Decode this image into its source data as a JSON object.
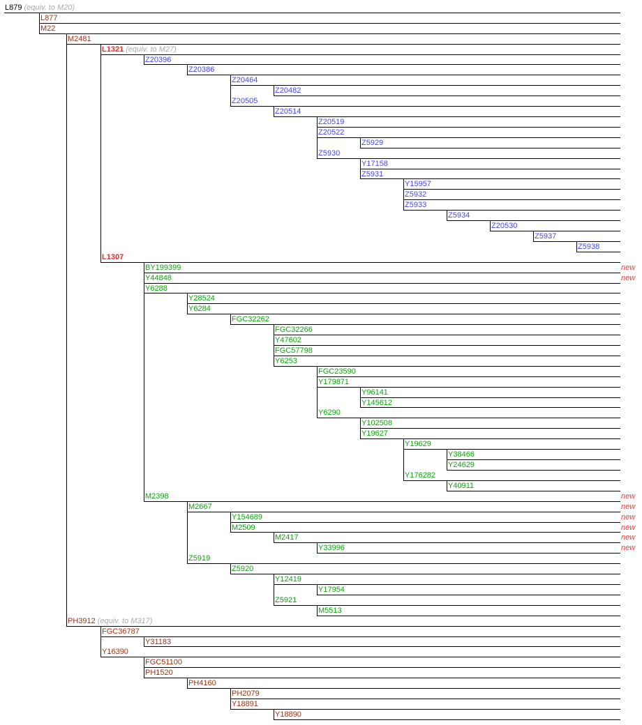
{
  "colors": {
    "black": "#000000",
    "brown": "#993311",
    "red": "#ff2222",
    "blue": "#4444ff",
    "green": "#11a011",
    "equiv": "#aaaaaa",
    "new": "#ff3333"
  },
  "new_label": "new",
  "nodes": [
    {
      "name": "L879",
      "depth": 0,
      "color": "black",
      "equiv": "(equiv. to M20)"
    },
    {
      "name": "L877",
      "depth": 1,
      "color": "brown"
    },
    {
      "name": "M22",
      "depth": 1,
      "color": "brown"
    },
    {
      "name": "M2481",
      "depth": 2,
      "color": "brown"
    },
    {
      "name": "L1321",
      "depth": 3,
      "color": "red",
      "bold": true,
      "equiv": "(equiv. to M27)"
    },
    {
      "name": "Z20396",
      "depth": 4,
      "color": "blue"
    },
    {
      "name": "Z20386",
      "depth": 5,
      "color": "blue"
    },
    {
      "name": "Z20464",
      "depth": 6,
      "color": "blue"
    },
    {
      "name": "Z20482",
      "depth": 7,
      "color": "blue"
    },
    {
      "name": "Z20505",
      "depth": 6,
      "color": "blue"
    },
    {
      "name": "Z20514",
      "depth": 7,
      "color": "blue"
    },
    {
      "name": "Z20519",
      "depth": 8,
      "color": "blue"
    },
    {
      "name": "Z20522",
      "depth": 8,
      "color": "blue"
    },
    {
      "name": "Z5929",
      "depth": 9,
      "color": "blue"
    },
    {
      "name": "Z5930",
      "depth": 8,
      "color": "blue"
    },
    {
      "name": "Y17158",
      "depth": 9,
      "color": "blue"
    },
    {
      "name": "Z5931",
      "depth": 9,
      "color": "blue"
    },
    {
      "name": "Y15957",
      "depth": 10,
      "color": "blue"
    },
    {
      "name": "Z5932",
      "depth": 10,
      "color": "blue"
    },
    {
      "name": "Z5933",
      "depth": 10,
      "color": "blue"
    },
    {
      "name": "Z5934",
      "depth": 11,
      "color": "blue"
    },
    {
      "name": "Z20530",
      "depth": 12,
      "color": "blue"
    },
    {
      "name": "Z5937",
      "depth": 13,
      "color": "blue"
    },
    {
      "name": "Z5938",
      "depth": 14,
      "color": "blue"
    },
    {
      "name": "L1307",
      "depth": 3,
      "color": "red",
      "bold": true
    },
    {
      "name": "BY199399",
      "depth": 4,
      "color": "green",
      "new": true
    },
    {
      "name": "Y44848",
      "depth": 4,
      "color": "green",
      "new": true
    },
    {
      "name": "Y6288",
      "depth": 4,
      "color": "green"
    },
    {
      "name": "Y28524",
      "depth": 5,
      "color": "green"
    },
    {
      "name": "Y6284",
      "depth": 5,
      "color": "green"
    },
    {
      "name": "FGC32262",
      "depth": 6,
      "color": "green"
    },
    {
      "name": "FGC32266",
      "depth": 7,
      "color": "green"
    },
    {
      "name": "Y47602",
      "depth": 7,
      "color": "green"
    },
    {
      "name": "FGC57798",
      "depth": 7,
      "color": "green"
    },
    {
      "name": "Y6253",
      "depth": 7,
      "color": "green"
    },
    {
      "name": "FGC23590",
      "depth": 8,
      "color": "green"
    },
    {
      "name": "Y179871",
      "depth": 8,
      "color": "green"
    },
    {
      "name": "Y96141",
      "depth": 9,
      "color": "green"
    },
    {
      "name": "Y145612",
      "depth": 9,
      "color": "green"
    },
    {
      "name": "Y6290",
      "depth": 8,
      "color": "green"
    },
    {
      "name": "Y102508",
      "depth": 9,
      "color": "green"
    },
    {
      "name": "Y19627",
      "depth": 9,
      "color": "green"
    },
    {
      "name": "Y19629",
      "depth": 10,
      "color": "green"
    },
    {
      "name": "Y38466",
      "depth": 11,
      "color": "green"
    },
    {
      "name": "Y24629",
      "depth": 11,
      "color": "green"
    },
    {
      "name": "Y176282",
      "depth": 10,
      "color": "green"
    },
    {
      "name": "Y40911",
      "depth": 11,
      "color": "green"
    },
    {
      "name": "M2398",
      "depth": 4,
      "color": "green",
      "new": true
    },
    {
      "name": "M2667",
      "depth": 5,
      "color": "green",
      "new": true
    },
    {
      "name": "Y154689",
      "depth": 6,
      "color": "green",
      "new": true
    },
    {
      "name": "M2509",
      "depth": 6,
      "color": "green",
      "new": true
    },
    {
      "name": "M2417",
      "depth": 7,
      "color": "green",
      "new": true
    },
    {
      "name": "Y33996",
      "depth": 8,
      "color": "green",
      "new": true
    },
    {
      "name": "Z5919",
      "depth": 5,
      "color": "green"
    },
    {
      "name": "Z5920",
      "depth": 6,
      "color": "green"
    },
    {
      "name": "Y12419",
      "depth": 7,
      "color": "green"
    },
    {
      "name": "Y17954",
      "depth": 8,
      "color": "green"
    },
    {
      "name": "Z5921",
      "depth": 7,
      "color": "green"
    },
    {
      "name": "M5513",
      "depth": 8,
      "color": "green"
    },
    {
      "name": "PH3912",
      "depth": 2,
      "color": "brown",
      "equiv": "(equiv. to M317)"
    },
    {
      "name": "FGC36787",
      "depth": 3,
      "color": "brown"
    },
    {
      "name": "Y31183",
      "depth": 4,
      "color": "brown"
    },
    {
      "name": "Y16390",
      "depth": 3,
      "color": "brown"
    },
    {
      "name": "FGC51100",
      "depth": 4,
      "color": "brown"
    },
    {
      "name": "PH1520",
      "depth": 4,
      "color": "brown"
    },
    {
      "name": "PH4160",
      "depth": 5,
      "color": "brown"
    },
    {
      "name": "PH2079",
      "depth": 6,
      "color": "brown"
    },
    {
      "name": "Y18891",
      "depth": 6,
      "color": "brown"
    },
    {
      "name": "Y18890",
      "depth": 7,
      "color": "brown"
    }
  ]
}
